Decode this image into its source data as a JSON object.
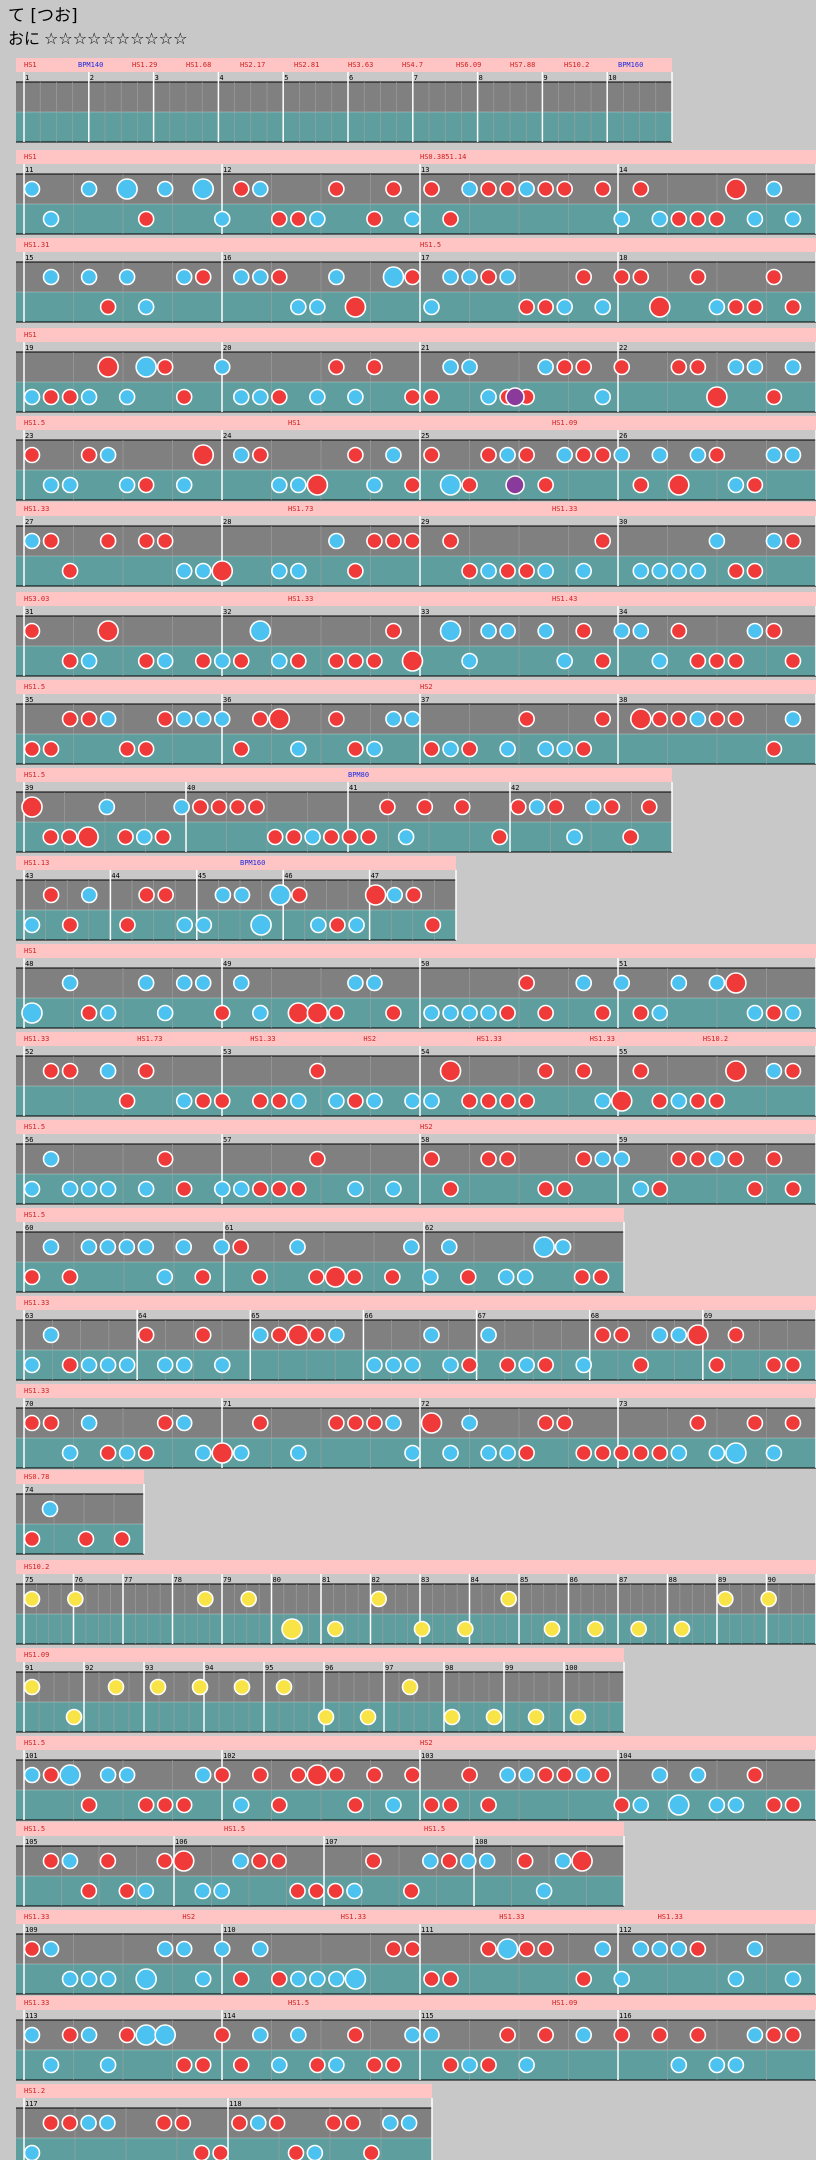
{
  "header": {
    "title": "て [つお]",
    "course_label": "おに",
    "difficulty_stars": "☆☆☆☆☆☆☆☆☆☆"
  },
  "colors": {
    "background": "#c8c8c8",
    "lane_top": "#808080",
    "lane_bottom": "#5f9e9e",
    "speed_band": "#ffc4c4",
    "don_note": "#f03a3a",
    "ka_note": "#4cc2f0",
    "drumroll_note": "#f8e446",
    "balloon_note": "#8a3a9a",
    "hs_label": "#d02020",
    "bpm_label": "#1a2ae0"
  },
  "chart_data": {
    "type": "other",
    "rows": [
      {
        "bars": "1-10",
        "labels": [
          "HS1",
          "BPM140",
          "HS1.29",
          "HS1.68",
          "HS2.17",
          "HS2.81",
          "HS3.63",
          "HS4.7",
          "HS6.09",
          "HS7.88",
          "HS10.2",
          "BPM160"
        ],
        "bar_numbers": [
          "1",
          "2",
          "3",
          "4",
          "5",
          "6",
          "7",
          "8",
          "9",
          "10"
        ]
      },
      {
        "bars": "11-14",
        "labels": [
          "HS1",
          "HS0.3851.14"
        ],
        "bar_numbers": [
          "11",
          "12",
          "13",
          "14"
        ]
      },
      {
        "bars": "15-18",
        "labels": [
          "HS1.31",
          "HS1.5"
        ],
        "bar_numbers": [
          "15",
          "16",
          "17",
          "18"
        ]
      },
      {
        "bars": "19-22",
        "labels": [
          "HS1"
        ],
        "bar_numbers": [
          "19",
          "20",
          "21",
          "22"
        ]
      },
      {
        "bars": "23-26",
        "labels": [
          "HS1.5",
          "HS1",
          "HS1.09"
        ],
        "bar_numbers": [
          "23",
          "24",
          "25",
          "26"
        ]
      },
      {
        "bars": "27-30",
        "labels": [
          "HS1.33",
          "HS1.73",
          "HS1.33"
        ],
        "bar_numbers": [
          "27",
          "28",
          "29",
          "30"
        ]
      },
      {
        "bars": "31-34",
        "labels": [
          "HS3.03",
          "HS1.33",
          "HS1.43"
        ],
        "bar_numbers": [
          "31",
          "32",
          "33",
          "34"
        ]
      },
      {
        "bars": "35-38",
        "labels": [
          "HS1.5",
          "HS2"
        ],
        "bar_numbers": [
          "35",
          "36",
          "37",
          "38"
        ]
      },
      {
        "bars": "39-42",
        "labels": [
          "HS1.5",
          "BPM80"
        ],
        "bar_numbers": [
          "39",
          "40",
          "41",
          "42"
        ]
      },
      {
        "bars": "43-47",
        "labels": [
          "HS1.13",
          "BPM160"
        ],
        "bar_numbers": [
          "43",
          "44",
          "45",
          "46",
          "47"
        ]
      },
      {
        "bars": "48-51",
        "labels": [
          "HS1"
        ],
        "bar_numbers": [
          "48",
          "49",
          "50",
          "51"
        ]
      },
      {
        "bars": "52-55",
        "labels": [
          "HS1.33",
          "HS1.73",
          "HS1.33",
          "HS2",
          "HS1.33",
          "HS1.33",
          "HS10.2"
        ],
        "bar_numbers": [
          "52",
          "53",
          "54",
          "55"
        ]
      },
      {
        "bars": "56-59",
        "labels": [
          "HS1.5",
          "HS2"
        ],
        "bar_numbers": [
          "56",
          "57",
          "58",
          "59"
        ]
      },
      {
        "bars": "60-62",
        "labels": [
          "HS1.5"
        ],
        "bar_numbers": [
          "60",
          "61",
          "62"
        ]
      },
      {
        "bars": "63-69",
        "labels": [
          "HS1.33"
        ],
        "bar_numbers": [
          "63",
          "64",
          "65",
          "66",
          "67",
          "68",
          "69"
        ]
      },
      {
        "bars": "70-73",
        "labels": [
          "HS1.33"
        ],
        "bar_numbers": [
          "70",
          "71",
          "72",
          "73"
        ]
      },
      {
        "bars": "74",
        "labels": [
          "HS0.78"
        ],
        "bar_numbers": [
          "74"
        ]
      },
      {
        "bars": "75-90",
        "labels": [
          "HS10.2"
        ],
        "bar_numbers": [
          "75",
          "76",
          "77",
          "78",
          "79",
          "80",
          "81",
          "82",
          "83",
          "84",
          "85",
          "86",
          "87",
          "88",
          "89",
          "90"
        ]
      },
      {
        "bars": "91-100",
        "labels": [
          "HS1.09"
        ],
        "bar_numbers": [
          "91",
          "92",
          "93",
          "94",
          "95",
          "96",
          "97",
          "98",
          "99",
          "100"
        ]
      },
      {
        "bars": "101-104",
        "labels": [
          "HS1.5",
          "HS2"
        ],
        "bar_numbers": [
          "101",
          "102",
          "103",
          "104"
        ]
      },
      {
        "bars": "105-108",
        "labels": [
          "HS1.5",
          "HS1.5",
          "HS1.5"
        ],
        "bar_numbers": [
          "105",
          "106",
          "107",
          "108"
        ]
      },
      {
        "bars": "109-112",
        "labels": [
          "HS1.33",
          "HS2",
          "HS1.33",
          "HS1.33",
          "HS1.33"
        ],
        "bar_numbers": [
          "109",
          "110",
          "111",
          "112"
        ]
      },
      {
        "bars": "113-116",
        "labels": [
          "HS1.33",
          "HS1.5",
          "HS1.09"
        ],
        "bar_numbers": [
          "113",
          "114",
          "115",
          "116"
        ]
      },
      {
        "bars": "117-118",
        "labels": [
          "HS1.2"
        ],
        "bar_numbers": [
          "117",
          "118"
        ]
      }
    ]
  }
}
